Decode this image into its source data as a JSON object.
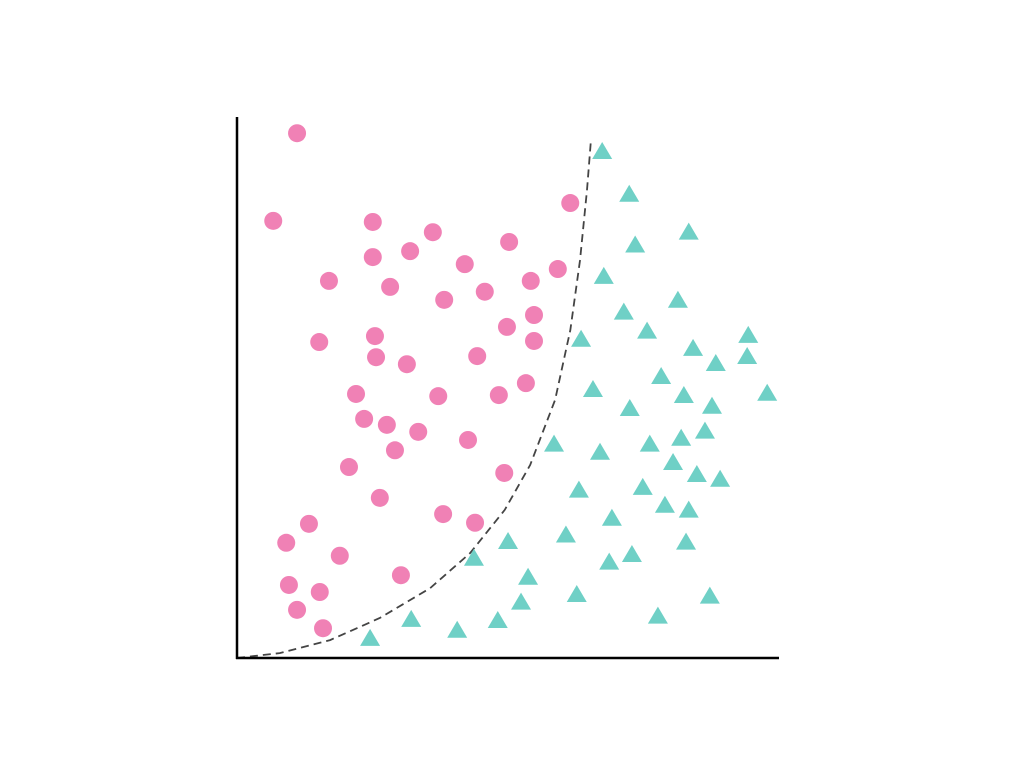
{
  "chart_data": {
    "type": "scatter",
    "title": "",
    "xlabel": "",
    "ylabel": "",
    "xlim": [
      0,
      100
    ],
    "ylim": [
      0,
      100
    ],
    "grid": false,
    "ticks": false,
    "legend": "none",
    "series": [
      {
        "marker": "circle",
        "color": "#f081b5",
        "points": [
          [
            11.1,
            97.0
          ],
          [
            6.7,
            80.8
          ],
          [
            25.1,
            80.6
          ],
          [
            36.2,
            78.7
          ],
          [
            50.3,
            76.9
          ],
          [
            25.1,
            74.1
          ],
          [
            32.0,
            75.2
          ],
          [
            42.1,
            72.8
          ],
          [
            17.0,
            69.7
          ],
          [
            28.3,
            68.6
          ],
          [
            38.3,
            66.2
          ],
          [
            45.8,
            67.7
          ],
          [
            54.3,
            69.7
          ],
          [
            59.3,
            71.9
          ],
          [
            61.6,
            84.1
          ],
          [
            54.9,
            63.4
          ],
          [
            49.9,
            61.2
          ],
          [
            54.9,
            58.6
          ],
          [
            15.2,
            58.4
          ],
          [
            25.5,
            59.5
          ],
          [
            25.7,
            55.6
          ],
          [
            31.4,
            54.3
          ],
          [
            44.4,
            55.8
          ],
          [
            53.4,
            50.8
          ],
          [
            48.4,
            48.6
          ],
          [
            37.2,
            48.4
          ],
          [
            22.0,
            48.8
          ],
          [
            23.5,
            44.2
          ],
          [
            27.7,
            43.1
          ],
          [
            33.5,
            41.8
          ],
          [
            29.2,
            38.4
          ],
          [
            42.7,
            40.3
          ],
          [
            20.7,
            35.3
          ],
          [
            49.4,
            34.2
          ],
          [
            26.4,
            29.6
          ],
          [
            38.1,
            26.6
          ],
          [
            44.0,
            25.0
          ],
          [
            13.3,
            24.8
          ],
          [
            9.1,
            21.3
          ],
          [
            19.0,
            18.9
          ],
          [
            30.3,
            15.3
          ],
          [
            9.6,
            13.5
          ],
          [
            15.3,
            12.2
          ],
          [
            11.1,
            8.9
          ],
          [
            15.9,
            5.5
          ]
        ]
      },
      {
        "marker": "triangle",
        "color": "#6fd0c6",
        "points": [
          [
            67.5,
            93.5
          ],
          [
            72.5,
            85.6
          ],
          [
            73.6,
            76.2
          ],
          [
            83.5,
            78.6
          ],
          [
            67.8,
            70.4
          ],
          [
            81.5,
            66.0
          ],
          [
            71.5,
            63.8
          ],
          [
            75.8,
            60.3
          ],
          [
            63.6,
            58.8
          ],
          [
            94.5,
            59.5
          ],
          [
            84.3,
            57.1
          ],
          [
            88.5,
            54.3
          ],
          [
            94.3,
            55.6
          ],
          [
            78.4,
            51.9
          ],
          [
            65.8,
            49.5
          ],
          [
            82.6,
            48.4
          ],
          [
            72.6,
            46.0
          ],
          [
            87.8,
            46.4
          ],
          [
            98.0,
            48.8
          ],
          [
            58.6,
            39.4
          ],
          [
            76.3,
            39.4
          ],
          [
            82.1,
            40.5
          ],
          [
            86.5,
            41.8
          ],
          [
            67.1,
            37.9
          ],
          [
            80.6,
            36.0
          ],
          [
            85.0,
            33.8
          ],
          [
            89.3,
            32.9
          ],
          [
            63.2,
            30.9
          ],
          [
            75.0,
            31.4
          ],
          [
            79.1,
            28.1
          ],
          [
            83.5,
            27.2
          ],
          [
            69.3,
            25.7
          ],
          [
            60.8,
            22.6
          ],
          [
            50.1,
            21.4
          ],
          [
            83.0,
            21.3
          ],
          [
            43.8,
            18.3
          ],
          [
            73.0,
            19.0
          ],
          [
            68.8,
            17.6
          ],
          [
            53.8,
            14.8
          ],
          [
            62.8,
            11.6
          ],
          [
            87.4,
            11.3
          ],
          [
            52.5,
            10.2
          ],
          [
            77.8,
            7.6
          ],
          [
            32.2,
            7.0
          ],
          [
            48.2,
            6.8
          ],
          [
            40.7,
            5.0
          ],
          [
            24.6,
            3.5
          ]
        ]
      }
    ],
    "decision_boundary": {
      "style": "dashed",
      "color": "#444444",
      "points": [
        [
          0,
          0
        ],
        [
          7.9,
          0.9
        ],
        [
          17.2,
          3.3
        ],
        [
          26.4,
          7.4
        ],
        [
          35.7,
          12.9
        ],
        [
          43.1,
          19.4
        ],
        [
          49.5,
          27.4
        ],
        [
          54.2,
          35.7
        ],
        [
          58.8,
          47.7
        ],
        [
          61.6,
          60.6
        ],
        [
          63.4,
          73.5
        ],
        [
          64.7,
          86.5
        ],
        [
          65.4,
          95.4
        ]
      ]
    },
    "axis_color": "#000000"
  }
}
